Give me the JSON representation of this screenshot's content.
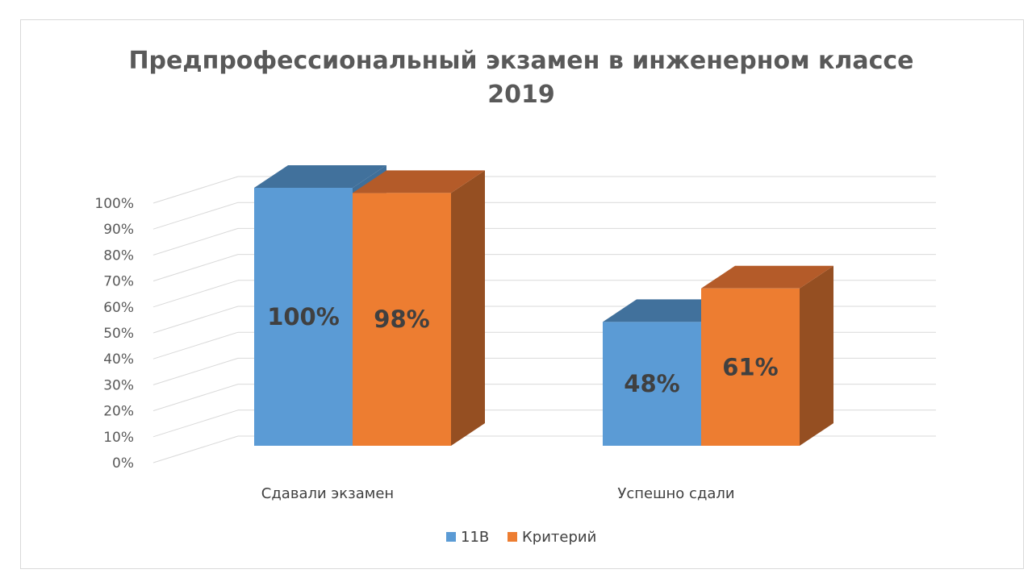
{
  "chart_data": {
    "type": "bar",
    "title": "Предпрофессиональный экзамен в инженерном классе 2019",
    "title_lines": [
      "Предпрофессиональный экзамен в инженерном классе",
      "2019"
    ],
    "categories": [
      "Сдавали экзамен",
      "Успешно сдали"
    ],
    "series": [
      {
        "name": "11В",
        "values": [
          100,
          48
        ],
        "labels": [
          "100%",
          "48%"
        ],
        "color": "#5b9bd5"
      },
      {
        "name": "Критерий",
        "values": [
          98,
          61
        ],
        "labels": [
          "98%",
          "61%"
        ],
        "color": "#ed7d31"
      }
    ],
    "ylim": [
      0,
      100
    ],
    "y_ticks": [
      "0%",
      "10%",
      "20%",
      "30%",
      "40%",
      "50%",
      "60%",
      "70%",
      "80%",
      "90%",
      "100%"
    ],
    "y_tick_values": [
      0,
      10,
      20,
      30,
      40,
      50,
      60,
      70,
      80,
      90,
      100
    ],
    "grid": true,
    "three_d": true,
    "legend_position": "bottom",
    "colors": {
      "series1_front": "#5b9bd5",
      "series1_top": "#41719c",
      "series1_side": "#3f6f9a",
      "series2_front": "#ed7d31",
      "series2_top": "#b45b29",
      "series2_side": "#954f22",
      "gridline": "#d9d9d9",
      "text": "#595959"
    }
  }
}
